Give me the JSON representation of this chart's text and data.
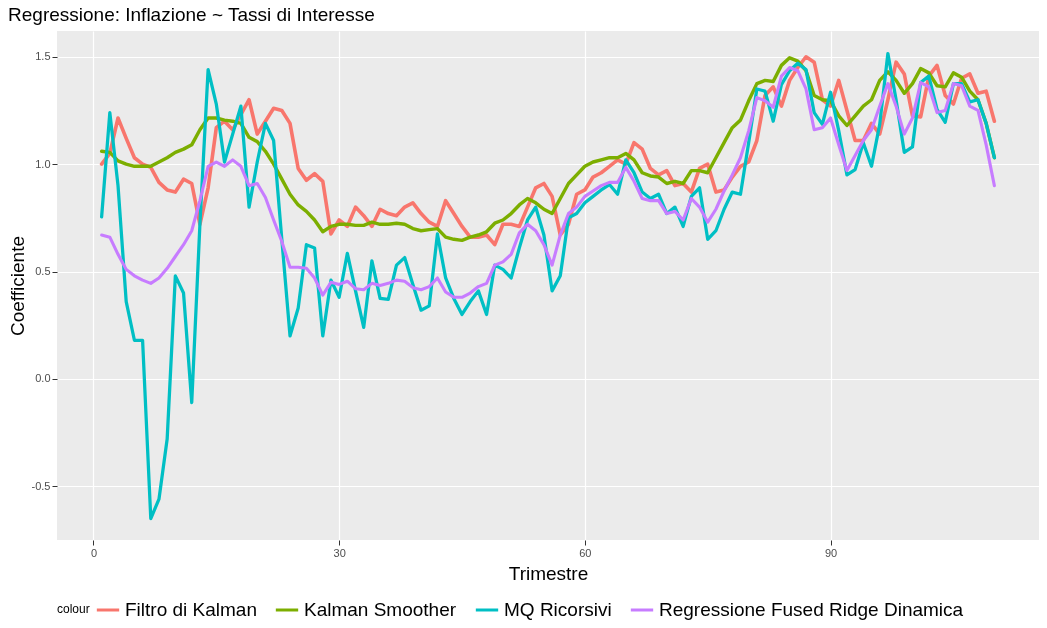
{
  "chart_data": {
    "type": "line",
    "title": "Regressione: Inflazione ~ Tassi di Interesse",
    "xlabel": "Trimestre",
    "ylabel": "Coefficiente",
    "legend_title": "colour",
    "legend": "bottom",
    "grid": true,
    "x": [
      1,
      2,
      3,
      4,
      5,
      6,
      7,
      8,
      9,
      10,
      11,
      12,
      13,
      14,
      15,
      16,
      17,
      18,
      19,
      20,
      21,
      22,
      23,
      24,
      25,
      26,
      27,
      28,
      29,
      30,
      31,
      32,
      33,
      34,
      35,
      36,
      37,
      38,
      39,
      40,
      41,
      42,
      43,
      44,
      45,
      46,
      47,
      48,
      49,
      50,
      51,
      52,
      53,
      54,
      55,
      56,
      57,
      58,
      59,
      60,
      61,
      62,
      63,
      64,
      65,
      66,
      67,
      68,
      69,
      70,
      71,
      72,
      73,
      74,
      75,
      76,
      77,
      78,
      79,
      80,
      81,
      82,
      83,
      84,
      85,
      86,
      87,
      88,
      89,
      90,
      91,
      92,
      93,
      94,
      95,
      96,
      97,
      98,
      99,
      100,
      101,
      102,
      103,
      104,
      105,
      106,
      107,
      108,
      109,
      110
    ],
    "xlim": [
      -4.45,
      115.45
    ],
    "xticks": [
      0,
      30,
      60,
      90
    ],
    "ylim": [
      -0.75,
      1.62
    ],
    "yticks": [
      -0.5,
      {
        "value": 0,
        "label": "0.0"
      },
      0.5,
      {
        "value": 1,
        "label": "1.0"
      },
      1.5
    ],
    "series": [
      {
        "name": "Filtro di Kalman",
        "color": "#f8766d",
        "values": [
          1.0,
          1.05,
          1.215,
          1.12,
          1.03,
          1.0,
          0.985,
          0.915,
          0.88,
          0.87,
          0.93,
          0.91,
          0.72,
          0.89,
          1.17,
          1.2,
          1.16,
          1.23,
          1.3,
          1.14,
          1.2,
          1.26,
          1.25,
          1.19,
          0.98,
          0.925,
          0.956,
          0.92,
          0.675,
          0.74,
          0.71,
          0.8,
          0.76,
          0.71,
          0.79,
          0.77,
          0.76,
          0.8,
          0.82,
          0.77,
          0.73,
          0.71,
          0.83,
          0.77,
          0.71,
          0.66,
          0.66,
          0.67,
          0.625,
          0.72,
          0.72,
          0.71,
          0.8,
          0.89,
          0.91,
          0.85,
          0.67,
          0.72,
          0.86,
          0.88,
          0.94,
          0.96,
          0.99,
          1.02,
          1.0,
          1.1,
          1.07,
          0.98,
          0.95,
          0.97,
          0.9,
          0.91,
          0.87,
          0.98,
          1.0,
          0.87,
          0.88,
          0.94,
          0.99,
          1.01,
          1.11,
          1.32,
          1.36,
          1.27,
          1.39,
          1.45,
          1.5,
          1.475,
          1.3,
          1.27,
          1.39,
          1.25,
          1.11,
          1.11,
          1.19,
          1.14,
          1.3,
          1.475,
          1.42,
          1.225,
          1.22,
          1.41,
          1.46,
          1.32,
          1.28,
          1.4,
          1.42,
          1.33,
          1.34,
          1.2
        ]
      },
      {
        "name": "Kalman Smoother",
        "color": "#7cae00",
        "values": [
          1.06,
          1.055,
          1.015,
          1.0,
          0.99,
          0.99,
          0.99,
          1.01,
          1.03,
          1.055,
          1.07,
          1.09,
          1.16,
          1.215,
          1.215,
          1.205,
          1.2,
          1.19,
          1.125,
          1.105,
          1.06,
          1.0,
          0.93,
          0.86,
          0.81,
          0.78,
          0.74,
          0.685,
          0.71,
          0.72,
          0.72,
          0.715,
          0.715,
          0.73,
          0.72,
          0.72,
          0.725,
          0.72,
          0.7,
          0.69,
          0.695,
          0.7,
          0.66,
          0.65,
          0.645,
          0.66,
          0.67,
          0.685,
          0.725,
          0.74,
          0.77,
          0.81,
          0.84,
          0.82,
          0.79,
          0.77,
          0.84,
          0.91,
          0.95,
          0.99,
          1.01,
          1.02,
          1.03,
          1.03,
          1.05,
          1.02,
          0.96,
          0.945,
          0.94,
          0.91,
          0.92,
          0.91,
          0.97,
          0.97,
          0.96,
          1.03,
          1.1,
          1.17,
          1.205,
          1.295,
          1.375,
          1.39,
          1.385,
          1.46,
          1.495,
          1.48,
          1.435,
          1.32,
          1.3,
          1.295,
          1.225,
          1.18,
          1.225,
          1.27,
          1.3,
          1.39,
          1.43,
          1.39,
          1.33,
          1.375,
          1.445,
          1.425,
          1.365,
          1.36,
          1.425,
          1.405,
          1.34,
          1.3,
          1.19,
          1.03
        ]
      },
      {
        "name": "MQ Ricorsivi",
        "color": "#00bfc4",
        "values": [
          0.755,
          1.24,
          0.9,
          0.36,
          0.18,
          0.18,
          -0.65,
          -0.56,
          -0.28,
          0.48,
          0.4,
          -0.11,
          0.72,
          1.44,
          1.28,
          1.01,
          1.14,
          1.27,
          0.8,
          1.01,
          1.19,
          1.11,
          0.65,
          0.2,
          0.33,
          0.625,
          0.61,
          0.2,
          0.46,
          0.38,
          0.585,
          0.41,
          0.24,
          0.55,
          0.375,
          0.37,
          0.53,
          0.565,
          0.44,
          0.32,
          0.34,
          0.675,
          0.47,
          0.375,
          0.3,
          0.36,
          0.41,
          0.3,
          0.53,
          0.51,
          0.47,
          0.61,
          0.74,
          0.8,
          0.67,
          0.41,
          0.48,
          0.75,
          0.77,
          0.82,
          0.85,
          0.88,
          0.905,
          0.86,
          1.02,
          0.96,
          0.87,
          0.84,
          0.86,
          0.77,
          0.8,
          0.71,
          0.85,
          0.89,
          0.65,
          0.69,
          0.79,
          0.87,
          0.86,
          1.1,
          1.35,
          1.34,
          1.2,
          1.37,
          1.435,
          1.47,
          1.44,
          1.24,
          1.185,
          1.335,
          1.155,
          0.95,
          0.975,
          1.1,
          0.99,
          1.185,
          1.515,
          1.3,
          1.055,
          1.08,
          1.38,
          1.41,
          1.255,
          1.195,
          1.375,
          1.375,
          1.29,
          1.3,
          1.19,
          1.03
        ]
      },
      {
        "name": "Regressione Fused Ridge Dinamica",
        "color": "#c77cff",
        "values": [
          0.67,
          0.66,
          0.58,
          0.51,
          0.48,
          0.46,
          0.445,
          0.47,
          0.515,
          0.57,
          0.625,
          0.69,
          0.83,
          0.99,
          1.01,
          0.99,
          1.02,
          0.99,
          0.9,
          0.91,
          0.845,
          0.74,
          0.64,
          0.52,
          0.52,
          0.515,
          0.47,
          0.39,
          0.45,
          0.44,
          0.455,
          0.42,
          0.415,
          0.445,
          0.435,
          0.445,
          0.46,
          0.455,
          0.425,
          0.415,
          0.43,
          0.47,
          0.405,
          0.38,
          0.38,
          0.4,
          0.43,
          0.445,
          0.53,
          0.545,
          0.58,
          0.68,
          0.72,
          0.69,
          0.625,
          0.53,
          0.67,
          0.77,
          0.8,
          0.85,
          0.875,
          0.9,
          0.915,
          0.915,
          0.985,
          0.92,
          0.84,
          0.83,
          0.83,
          0.77,
          0.78,
          0.74,
          0.84,
          0.8,
          0.73,
          0.79,
          0.875,
          0.95,
          1.03,
          1.155,
          1.31,
          1.295,
          1.265,
          1.41,
          1.45,
          1.435,
          1.35,
          1.16,
          1.17,
          1.215,
          1.09,
          0.97,
          1.04,
          1.11,
          1.16,
          1.27,
          1.375,
          1.27,
          1.14,
          1.215,
          1.38,
          1.36,
          1.24,
          1.25,
          1.375,
          1.365,
          1.27,
          1.25,
          1.09,
          0.9
        ]
      }
    ]
  }
}
